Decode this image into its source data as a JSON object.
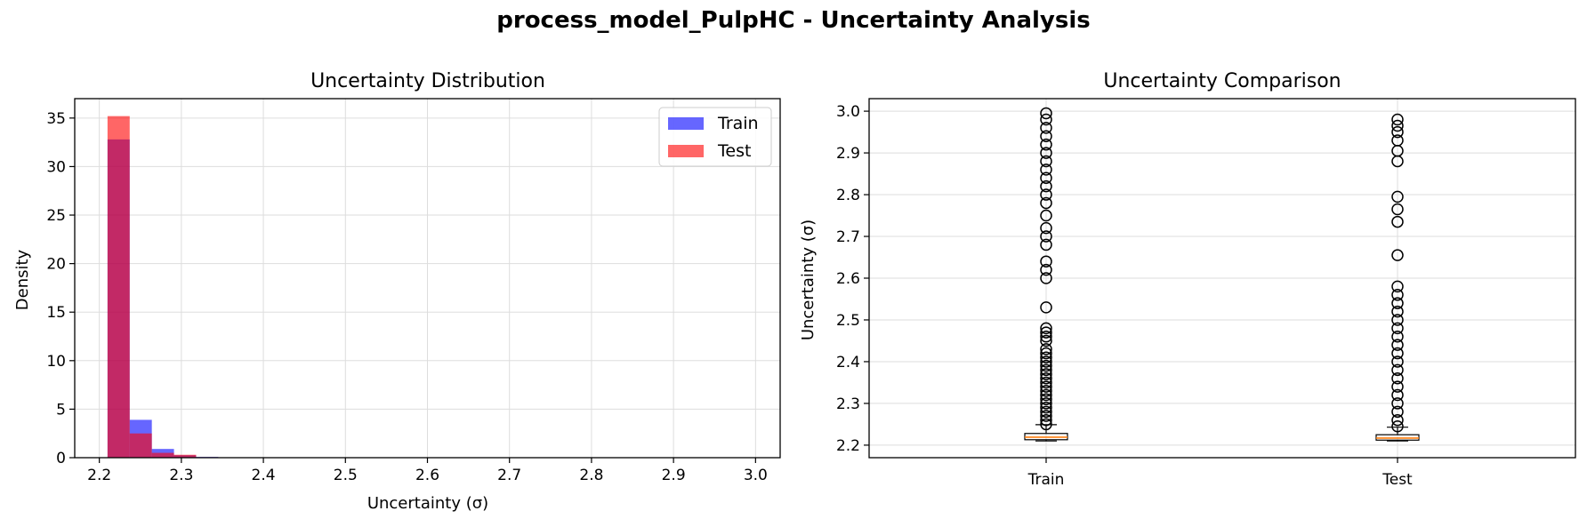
{
  "figure": {
    "suptitle": "process_model_PulpHC - Uncertainty Analysis"
  },
  "chart_data": [
    {
      "type": "histogram",
      "title": "Uncertainty Distribution",
      "xlabel": "Uncertainty (σ)",
      "ylabel": "Density",
      "xlim": [
        2.17,
        3.03
      ],
      "ylim": [
        0,
        37
      ],
      "xticks": [
        "2.2",
        "2.3",
        "2.4",
        "2.5",
        "2.6",
        "2.7",
        "2.8",
        "2.9",
        "3.0"
      ],
      "yticks": [
        "0",
        "5",
        "10",
        "15",
        "20",
        "25",
        "30",
        "35"
      ],
      "grid": true,
      "legend": "top-right",
      "series": [
        {
          "name": "Train",
          "color": "#0000ff",
          "alpha": 0.6,
          "bins": [
            [
              2.21,
              2.237,
              32.8
            ],
            [
              2.237,
              2.264,
              3.9
            ],
            [
              2.264,
              2.291,
              0.9
            ],
            [
              2.291,
              2.318,
              0.25
            ],
            [
              2.318,
              2.345,
              0.08
            ]
          ]
        },
        {
          "name": "Test",
          "color": "#ff0000",
          "alpha": 0.6,
          "bins": [
            [
              2.21,
              2.237,
              35.2
            ],
            [
              2.237,
              2.264,
              2.5
            ],
            [
              2.264,
              2.291,
              0.5
            ],
            [
              2.291,
              2.318,
              0.3
            ],
            [
              2.318,
              2.345,
              0.05
            ]
          ]
        }
      ]
    },
    {
      "type": "boxplot",
      "title": "Uncertainty Comparison",
      "ylabel": "Uncertainty (σ)",
      "ylim": [
        2.17,
        3.03
      ],
      "yticks": [
        "2.2",
        "2.3",
        "2.4",
        "2.5",
        "2.6",
        "2.7",
        "2.8",
        "2.9",
        "3.0"
      ],
      "grid": true,
      "categories": [
        "Train",
        "Test"
      ],
      "median_color": "#ff7f0e",
      "boxes": [
        {
          "name": "Train",
          "whisker_low": 2.21,
          "q1": 2.213,
          "median": 2.219,
          "q3": 2.228,
          "whisker_high": 2.249,
          "outliers": [
            2.25,
            2.26,
            2.27,
            2.28,
            2.29,
            2.3,
            2.31,
            2.32,
            2.33,
            2.34,
            2.35,
            2.36,
            2.37,
            2.38,
            2.39,
            2.4,
            2.41,
            2.42,
            2.43,
            2.45,
            2.46,
            2.47,
            2.48,
            2.53,
            2.6,
            2.62,
            2.64,
            2.68,
            2.7,
            2.72,
            2.75,
            2.78,
            2.8,
            2.82,
            2.84,
            2.86,
            2.88,
            2.9,
            2.92,
            2.94,
            2.96,
            2.98,
            2.995
          ]
        },
        {
          "name": "Test",
          "whisker_low": 2.21,
          "q1": 2.212,
          "median": 2.217,
          "q3": 2.225,
          "whisker_high": 2.243,
          "outliers": [
            2.245,
            2.26,
            2.28,
            2.3,
            2.32,
            2.34,
            2.36,
            2.38,
            2.4,
            2.42,
            2.44,
            2.46,
            2.48,
            2.5,
            2.52,
            2.54,
            2.56,
            2.58,
            2.655,
            2.735,
            2.765,
            2.795,
            2.88,
            2.905,
            2.93,
            2.95,
            2.965,
            2.98
          ]
        }
      ]
    }
  ]
}
